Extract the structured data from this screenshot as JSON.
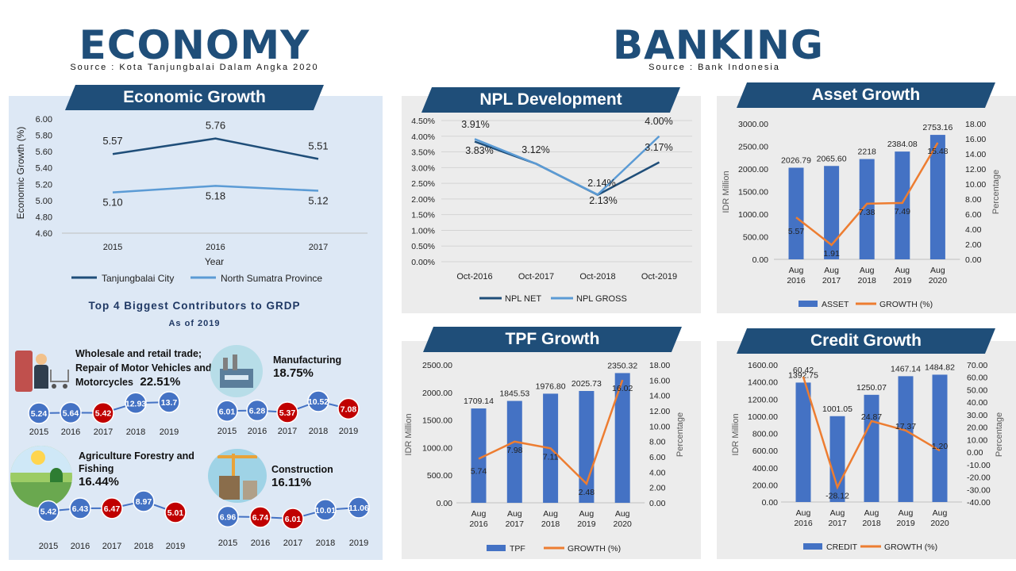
{
  "header": {
    "economy_title": "ECONOMY",
    "economy_source": "Source : Kota Tanjungbalai Dalam Angka 2020",
    "banking_title": "BANKING",
    "banking_source": "Source : Bank Indonesia"
  },
  "colors": {
    "navy": "#1f4e79",
    "bar_blue": "#4472c4",
    "line_orange": "#ed7d31",
    "line_dark": "#1f4e79",
    "line_light": "#5b9bd5",
    "bubble_blue": "#4472c4",
    "bubble_red": "#c00000",
    "panel_gray": "#ececec",
    "panel_blue": "#dde8f5"
  },
  "contributors": {
    "title": "Top 4 Biggest Contributors to GRDP",
    "subtitle": "As of 2019",
    "years": [
      "2015",
      "2016",
      "2017",
      "2018",
      "2019"
    ],
    "sectors": [
      {
        "name": "Wholesale and retail trade; Repair of Motor Vehicles and Motorcycles",
        "pct": "22.51%",
        "icon": "shopping-cart-icon",
        "values": [
          5.24,
          5.64,
          5.42,
          12.93,
          13.7
        ],
        "labels": [
          "5.24",
          "5.64",
          "5.42",
          "12.93",
          "13.7"
        ],
        "red": [
          false,
          false,
          true,
          false,
          false
        ]
      },
      {
        "name": "Manufacturing",
        "pct": "18.75%",
        "icon": "factory-icon",
        "values": [
          6.01,
          6.28,
          5.37,
          10.52,
          7.08
        ],
        "labels": [
          "6.01",
          "6.28",
          "5.37",
          "10.52",
          "7.08"
        ],
        "red": [
          false,
          false,
          true,
          false,
          true
        ]
      },
      {
        "name": "Agriculture Forestry and Fishing",
        "pct": "16.44%",
        "icon": "farm-icon",
        "values": [
          5.42,
          6.43,
          6.47,
          8.97,
          5.01
        ],
        "labels": [
          "5.42",
          "6.43",
          "6.47",
          "8.97",
          "5.01"
        ],
        "red": [
          false,
          false,
          true,
          false,
          true
        ]
      },
      {
        "name": "Construction",
        "pct": "16.11%",
        "icon": "crane-icon",
        "values": [
          6.96,
          6.74,
          6.01,
          10.01,
          11.06
        ],
        "labels": [
          "6.96",
          "6.74",
          "6.01",
          "10.01",
          "11.06"
        ],
        "red": [
          false,
          true,
          true,
          false,
          false
        ]
      }
    ]
  },
  "chart_data": [
    {
      "id": "economic_growth",
      "type": "line",
      "title": "Economic Growth",
      "xlabel": "Year",
      "ylabel": "Economic Growth (%)",
      "ylim": [
        4.6,
        6.0
      ],
      "yticks": [
        "6.00",
        "5.80",
        "5.60",
        "5.40",
        "5.20",
        "5.00",
        "4.80",
        "4.60"
      ],
      "categories": [
        "2015",
        "2016",
        "2017"
      ],
      "series": [
        {
          "name": "Tanjungbalai City",
          "values": [
            5.57,
            5.76,
            5.51
          ],
          "labels": [
            "5.57",
            "5.76",
            "5.51"
          ]
        },
        {
          "name": "North Sumatra Province",
          "values": [
            5.1,
            5.18,
            5.12
          ],
          "labels": [
            "5.10",
            "5.18",
            "5.12"
          ]
        }
      ],
      "legend": "bottom",
      "grid": false
    },
    {
      "id": "npl_development",
      "type": "line",
      "title": "NPL Development",
      "ylim": [
        0,
        4.5
      ],
      "yticks": [
        "4.50%",
        "4.00%",
        "3.50%",
        "3.00%",
        "2.50%",
        "2.00%",
        "1.50%",
        "1.00%",
        "0.50%",
        "0.00%"
      ],
      "categories": [
        "Oct-2016",
        "Oct-2017",
        "Oct-2018",
        "Oct-2019"
      ],
      "series": [
        {
          "name": "NPL NET",
          "values": [
            3.83,
            3.12,
            2.13,
            3.17
          ],
          "labels": [
            "3.83%",
            "3.12%",
            "2.13%",
            "3.17%"
          ]
        },
        {
          "name": "NPL GROSS",
          "values": [
            3.91,
            3.12,
            2.14,
            4.0
          ],
          "labels": [
            "3.91%",
            "",
            "2.14%",
            "4.00%"
          ]
        }
      ],
      "legend": "bottom",
      "grid": true
    },
    {
      "id": "asset_growth",
      "type": "bar",
      "title": "Asset Growth",
      "ylabel": "IDR Million",
      "y2label": "Percentage",
      "ylim": [
        0,
        3000
      ],
      "y2lim": [
        0,
        18
      ],
      "yticks": [
        "3000.00",
        "2500.00",
        "2000.00",
        "1500.00",
        "1000.00",
        "500.00",
        "0.00"
      ],
      "y2ticks": [
        "18.00",
        "16.00",
        "14.00",
        "12.00",
        "10.00",
        "8.00",
        "6.00",
        "4.00",
        "2.00",
        "0.00"
      ],
      "categories": [
        "Aug 2016",
        "Aug 2017",
        "Aug 2018",
        "Aug 2019",
        "Aug 2020"
      ],
      "bars": {
        "name": "ASSET",
        "values": [
          2026.79,
          2065.6,
          2218,
          2384.08,
          2753.16
        ],
        "labels": [
          "2026.79",
          "2065.60",
          "2218",
          "2384.08",
          "2753.16"
        ]
      },
      "line": {
        "name": "GROWTH (%)",
        "values": [
          5.57,
          1.91,
          7.38,
          7.49,
          15.48
        ],
        "labels": [
          "5.57",
          "1.91",
          "7.38",
          "7.49",
          "15.48"
        ]
      },
      "legend": "bottom"
    },
    {
      "id": "tpf_growth",
      "type": "bar",
      "title": "TPF Growth",
      "ylabel": "IDR Million",
      "y2label": "Percentage",
      "ylim": [
        0,
        2500
      ],
      "y2lim": [
        0,
        18
      ],
      "yticks": [
        "2500.00",
        "2000.00",
        "1500.00",
        "1000.00",
        "500.00",
        "0.00"
      ],
      "y2ticks": [
        "18.00",
        "16.00",
        "14.00",
        "12.00",
        "10.00",
        "8.00",
        "6.00",
        "4.00",
        "2.00",
        "0.00"
      ],
      "categories": [
        "Aug 2016",
        "Aug 2017",
        "Aug 2018",
        "Aug 2019",
        "Aug 2020"
      ],
      "bars": {
        "name": "TPF",
        "values": [
          1709.14,
          1845.53,
          1976.8,
          2025.73,
          2350.32
        ],
        "labels": [
          "1709.14",
          "1845.53",
          "1976.80",
          "2025.73",
          "2350.32"
        ]
      },
      "line": {
        "name": "GROWTH (%)",
        "values": [
          5.74,
          7.98,
          7.11,
          2.48,
          16.02
        ],
        "labels": [
          "5.74",
          "7.98",
          "7.11",
          "2.48",
          "16.02"
        ]
      },
      "legend": "bottom"
    },
    {
      "id": "credit_growth",
      "type": "bar",
      "title": "Credit Growth",
      "ylabel": "IDR Million",
      "y2label": "Percentage",
      "ylim": [
        0,
        1600
      ],
      "y2lim": [
        -40,
        70
      ],
      "yticks": [
        "1600.00",
        "1400.00",
        "1200.00",
        "1000.00",
        "800.00",
        "600.00",
        "400.00",
        "200.00",
        "0.00"
      ],
      "y2ticks": [
        "70.00",
        "60.00",
        "50.00",
        "40.00",
        "30.00",
        "20.00",
        "10.00",
        "0.00",
        "-10.00",
        "-20.00",
        "-30.00",
        "-40.00"
      ],
      "categories": [
        "Aug 2016",
        "Aug 2017",
        "Aug 2018",
        "Aug 2019",
        "Aug 2020"
      ],
      "bars": {
        "name": "CREDIT",
        "values": [
          1392.75,
          1001.05,
          1250.07,
          1467.14,
          1484.82
        ],
        "labels": [
          "1392.75",
          "1001.05",
          "1250.07",
          "1467.14",
          "1484.82"
        ]
      },
      "line": {
        "name": "GROWTH (%)",
        "values": [
          60.42,
          -28.12,
          24.87,
          17.37,
          1.2
        ],
        "labels": [
          "60.42",
          "-28.12",
          "24.87",
          "17.37",
          "1.20"
        ]
      },
      "legend": "bottom"
    }
  ]
}
